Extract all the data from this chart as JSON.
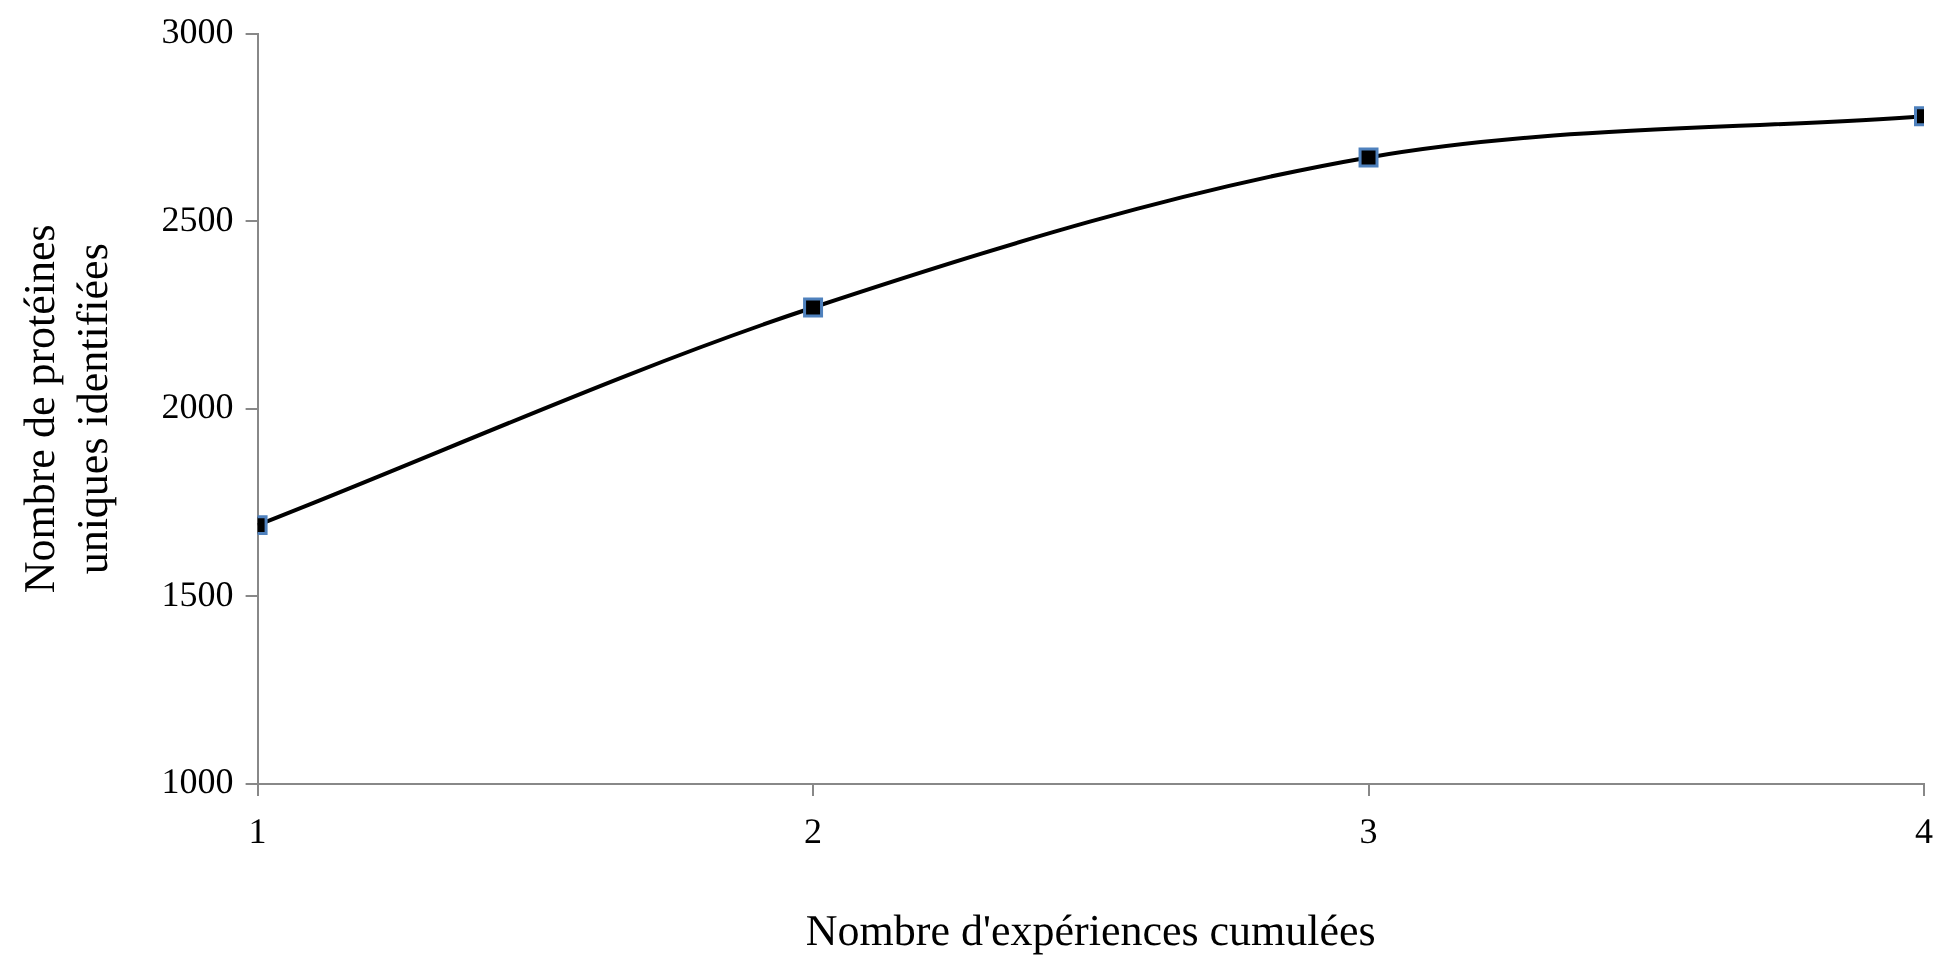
{
  "chart_data": {
    "type": "line",
    "xlabel": "Nombre d'expériences cumulées",
    "ylabel": "Nombre de protéines uniques identifiées",
    "x": [
      1,
      2,
      3,
      4
    ],
    "series": [
      {
        "color": "#000000",
        "values": [
          1690,
          2270,
          2670,
          2780
        ]
      }
    ],
    "xlim": [
      1,
      4
    ],
    "xticks": [
      1,
      2,
      3,
      4
    ],
    "ylim": [
      1000,
      3000
    ],
    "yticks": [
      1000,
      1500,
      2000,
      2500,
      3000
    ],
    "grid": false,
    "legend": false,
    "marker": "square",
    "line_style": "solid"
  }
}
